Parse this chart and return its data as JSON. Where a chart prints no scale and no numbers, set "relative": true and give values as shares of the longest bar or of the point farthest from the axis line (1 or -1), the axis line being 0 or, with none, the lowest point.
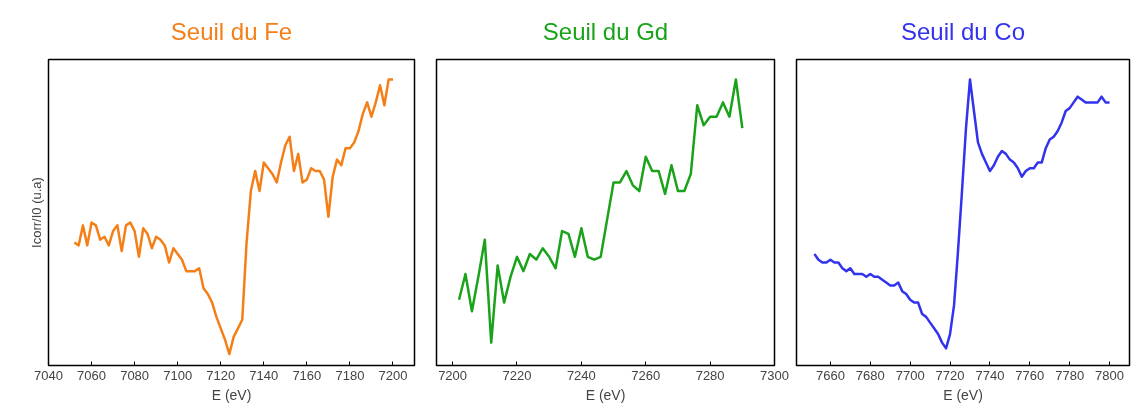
{
  "chart_data": [
    {
      "type": "line",
      "title": "Seuil du Fe",
      "xlabel": "E (eV)",
      "ylabel": "Icorr/I0 (u.a)",
      "relative": true,
      "tick_labels": "x",
      "xlim": [
        7040,
        7210
      ],
      "xticks": [
        7040,
        7060,
        7080,
        7100,
        7120,
        7140,
        7160,
        7180,
        7200
      ],
      "x": [
        7052,
        7054,
        7056,
        7058,
        7060,
        7062,
        7064,
        7066,
        7068,
        7070,
        7072,
        7074,
        7076,
        7078,
        7080,
        7082,
        7084,
        7086,
        7088,
        7090,
        7092,
        7094,
        7096,
        7098,
        7100,
        7102,
        7104,
        7106,
        7108,
        7110,
        7112,
        7114,
        7116,
        7118,
        7120,
        7122,
        7124,
        7126,
        7128,
        7130,
        7132,
        7134,
        7136,
        7138,
        7140,
        7142,
        7144,
        7146,
        7148,
        7150,
        7152,
        7154,
        7156,
        7158,
        7160,
        7162,
        7164,
        7166,
        7168,
        7170,
        7172,
        7174,
        7176,
        7178,
        7180,
        7182,
        7184,
        7186,
        7188,
        7190,
        7192,
        7194,
        7196,
        7198,
        7200
      ],
      "series": [
        {
          "color": "#f57f17",
          "values": [
            0.43,
            0.42,
            0.49,
            0.42,
            0.5,
            0.49,
            0.44,
            0.45,
            0.42,
            0.47,
            0.49,
            0.4,
            0.49,
            0.5,
            0.47,
            0.38,
            0.48,
            0.46,
            0.41,
            0.45,
            0.44,
            0.42,
            0.36,
            0.41,
            0.39,
            0.37,
            0.33,
            0.33,
            0.33,
            0.34,
            0.27,
            0.25,
            0.22,
            0.17,
            0.13,
            0.09,
            0.04,
            0.1,
            0.13,
            0.16,
            0.43,
            0.61,
            0.68,
            0.61,
            0.71,
            0.69,
            0.67,
            0.64,
            0.71,
            0.77,
            0.8,
            0.68,
            0.74,
            0.64,
            0.65,
            0.69,
            0.68,
            0.68,
            0.65,
            0.52,
            0.66,
            0.72,
            0.7,
            0.76,
            0.76,
            0.78,
            0.82,
            0.88,
            0.92,
            0.87,
            0.92,
            0.98,
            0.91,
            1.0,
            1.0
          ]
        }
      ]
    },
    {
      "type": "line",
      "title": "Seuil du Gd",
      "xlabel": "E (eV)",
      "relative": true,
      "tick_labels": "x",
      "xlim": [
        7195,
        7300
      ],
      "xticks": [
        7200,
        7220,
        7240,
        7260,
        7280,
        7300
      ],
      "x": [
        7202,
        7204,
        7206,
        7208,
        7210,
        7212,
        7214,
        7216,
        7218,
        7220,
        7222,
        7224,
        7226,
        7228,
        7230,
        7232,
        7234,
        7236,
        7238,
        7240,
        7242,
        7244,
        7246,
        7248,
        7250,
        7252,
        7254,
        7256,
        7258,
        7260,
        7262,
        7264,
        7266,
        7268,
        7270,
        7272,
        7274,
        7276,
        7278,
        7280,
        7282,
        7284,
        7286,
        7288,
        7290
      ],
      "series": [
        {
          "color": "#1aa31a",
          "values": [
            0.23,
            0.32,
            0.19,
            0.31,
            0.44,
            0.08,
            0.35,
            0.22,
            0.31,
            0.38,
            0.33,
            0.39,
            0.37,
            0.41,
            0.38,
            0.34,
            0.47,
            0.46,
            0.38,
            0.48,
            0.38,
            0.37,
            0.38,
            0.51,
            0.64,
            0.64,
            0.68,
            0.63,
            0.61,
            0.73,
            0.68,
            0.68,
            0.6,
            0.7,
            0.61,
            0.61,
            0.67,
            0.91,
            0.84,
            0.87,
            0.87,
            0.92,
            0.87,
            1.0,
            0.83
          ]
        }
      ]
    },
    {
      "type": "line",
      "title": "Seuil du Co",
      "xlabel": "E (eV)",
      "relative": true,
      "tick_labels": "x",
      "xlim": [
        7643,
        7810
      ],
      "xticks": [
        7660,
        7680,
        7700,
        7720,
        7740,
        7760,
        7780,
        7800
      ],
      "x": [
        7652,
        7654,
        7656,
        7658,
        7660,
        7662,
        7664,
        7666,
        7668,
        7670,
        7672,
        7674,
        7676,
        7678,
        7680,
        7682,
        7684,
        7686,
        7688,
        7690,
        7692,
        7694,
        7696,
        7698,
        7700,
        7702,
        7704,
        7706,
        7708,
        7710,
        7712,
        7714,
        7716,
        7718,
        7720,
        7722,
        7724,
        7726,
        7728,
        7730,
        7732,
        7734,
        7736,
        7738,
        7740,
        7742,
        7744,
        7746,
        7748,
        7750,
        7752,
        7754,
        7756,
        7758,
        7760,
        7762,
        7764,
        7766,
        7768,
        7770,
        7772,
        7774,
        7776,
        7778,
        7780,
        7782,
        7784,
        7786,
        7788,
        7790,
        7792,
        7794,
        7796,
        7798,
        7800
      ],
      "series": [
        {
          "color": "#3333ee",
          "values": [
            0.39,
            0.37,
            0.36,
            0.36,
            0.37,
            0.36,
            0.36,
            0.34,
            0.33,
            0.34,
            0.32,
            0.32,
            0.32,
            0.31,
            0.32,
            0.31,
            0.31,
            0.3,
            0.29,
            0.28,
            0.28,
            0.29,
            0.26,
            0.25,
            0.23,
            0.22,
            0.22,
            0.18,
            0.17,
            0.15,
            0.13,
            0.11,
            0.08,
            0.06,
            0.11,
            0.21,
            0.4,
            0.61,
            0.83,
            1.0,
            0.89,
            0.78,
            0.74,
            0.71,
            0.68,
            0.7,
            0.73,
            0.75,
            0.74,
            0.72,
            0.71,
            0.69,
            0.66,
            0.68,
            0.69,
            0.69,
            0.71,
            0.71,
            0.76,
            0.79,
            0.8,
            0.82,
            0.85,
            0.89,
            0.9,
            0.92,
            0.94,
            0.93,
            0.92,
            0.92,
            0.92,
            0.92,
            0.94,
            0.92,
            0.92
          ]
        }
      ]
    }
  ]
}
